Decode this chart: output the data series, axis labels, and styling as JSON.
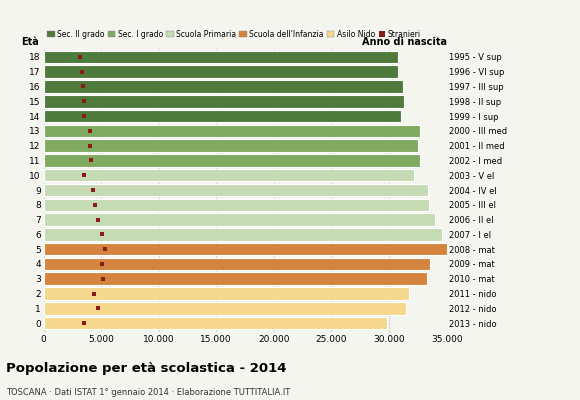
{
  "ages": [
    18,
    17,
    16,
    15,
    14,
    13,
    12,
    11,
    10,
    9,
    8,
    7,
    6,
    5,
    4,
    3,
    2,
    1,
    0
  ],
  "anno_nascita": [
    "1995 - V sup",
    "1996 - VI sup",
    "1997 - III sup",
    "1998 - II sup",
    "1999 - I sup",
    "2000 - III med",
    "2001 - II med",
    "2002 - I med",
    "2003 - V el",
    "2004 - IV el",
    "2005 - III el",
    "2006 - II el",
    "2007 - I el",
    "2008 - mat",
    "2009 - mat",
    "2010 - mat",
    "2011 - nido",
    "2012 - nido",
    "2013 - nido"
  ],
  "bar_values": [
    30800,
    30800,
    31200,
    31300,
    31000,
    32700,
    32500,
    32700,
    32200,
    33400,
    33500,
    34000,
    34600,
    35000,
    33600,
    33300,
    31700,
    31500,
    29800
  ],
  "stranieri_values": [
    3200,
    3300,
    3400,
    3500,
    3500,
    4000,
    4000,
    4100,
    3500,
    4300,
    4500,
    4700,
    5100,
    5300,
    5100,
    5200,
    4400,
    4700,
    3500
  ],
  "categories": {
    "Sec. II grado": {
      "ages": [
        18,
        17,
        16,
        15,
        14
      ],
      "color": "#4e7a3c"
    },
    "Sec. I grado": {
      "ages": [
        13,
        12,
        11
      ],
      "color": "#7faa60"
    },
    "Scuola Primaria": {
      "ages": [
        10,
        9,
        8,
        7,
        6
      ],
      "color": "#c5dbb3"
    },
    "Scuola dell'Infanzia": {
      "ages": [
        5,
        4,
        3
      ],
      "color": "#d4843e"
    },
    "Asilo Nido": {
      "ages": [
        2,
        1,
        0
      ],
      "color": "#f5d78e"
    }
  },
  "stranieri_color": "#8b1a1a",
  "background_color": "#f5f5f0",
  "title": "Popolazione per età scolastica - 2014",
  "subtitle": "TOSCANA · Dati ISTAT 1° gennaio 2014 · Elaborazione TUTTITALIA.IT",
  "xlim": [
    0,
    35000
  ],
  "xticks": [
    0,
    5000,
    10000,
    15000,
    20000,
    25000,
    30000,
    35000
  ],
  "bar_height": 0.85,
  "eta_label": "Età",
  "anno_label": "Anno di nascita",
  "grid_color": "#aaaaaa"
}
